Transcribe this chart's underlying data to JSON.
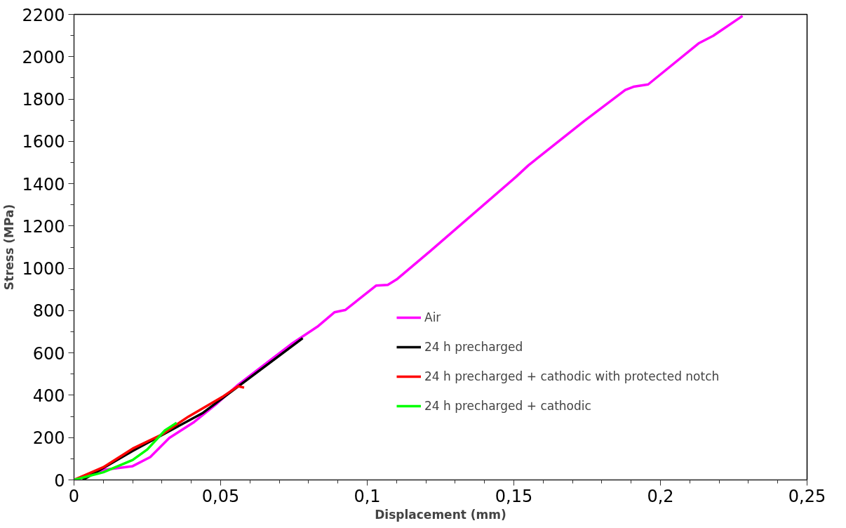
{
  "chart_data": {
    "type": "line",
    "xlabel": "Displacement (mm)",
    "ylabel": "Stress (MPa)",
    "xlim": [
      0,
      0.25
    ],
    "ylim": [
      0,
      2200
    ],
    "xticks": [
      0,
      {
        "value": 0.05,
        "label": "0,05"
      },
      {
        "value": 0.1,
        "label": "0,1"
      },
      {
        "value": 0.15,
        "label": "0,15"
      },
      {
        "value": 0.2,
        "label": "0,2"
      },
      {
        "value": 0.25,
        "label": "0,25"
      }
    ],
    "yticks": [
      0,
      200,
      400,
      600,
      800,
      1000,
      1200,
      1400,
      1600,
      1800,
      2000,
      2200
    ],
    "grid": false,
    "legend": "right",
    "marker": "none",
    "line_style": "solid",
    "series": [
      {
        "name": "Air",
        "color": "#ff00ff",
        "x": [
          0,
          0.01,
          0.02,
          0.026,
          0.0325,
          0.041,
          0.049,
          0.056,
          0.074,
          0.083,
          0.0888,
          0.0925,
          0.103,
          0.107,
          0.11,
          0.1217,
          0.1508,
          0.155,
          0.174,
          0.188,
          0.1908,
          0.1958,
          0.213,
          0.218,
          0.228
        ],
        "values": [
          0,
          47,
          65,
          108,
          198,
          274,
          364,
          450,
          641,
          724,
          792,
          803,
          918,
          922,
          947,
          1084,
          1433,
          1487,
          1696,
          1843,
          1858,
          1869,
          2063,
          2099,
          2193
        ]
      },
      {
        "name": "24 h precharged",
        "color": "#000000",
        "x": [
          0.003,
          0.02,
          0.044,
          0.078
        ],
        "values": [
          0,
          137,
          317,
          670
        ]
      },
      {
        "name": "24 h precharged + cathodic with protected notch",
        "color": "#ff0000",
        "x": [
          0,
          0.01,
          0.02,
          0.03,
          0.039,
          0.051,
          0.056,
          0.058
        ],
        "values": [
          0,
          60,
          148,
          215,
          299,
          396,
          443,
          436
        ]
      },
      {
        "name": "24 h precharged + cathodic",
        "color": "#00ff00",
        "x": [
          0,
          0.01,
          0.02,
          0.025,
          0.031,
          0.035
        ],
        "values": [
          0,
          36,
          94,
          144,
          234,
          270
        ]
      }
    ]
  }
}
